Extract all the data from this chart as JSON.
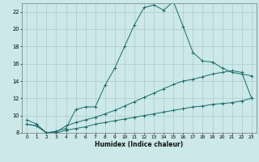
{
  "xlabel": "Humidex (Indice chaleur)",
  "bg_color": "#cce8e8",
  "grid_color": "#aacccc",
  "line_color": "#1a6b6b",
  "xlim": [
    -0.5,
    23.5
  ],
  "ylim": [
    8,
    23
  ],
  "xticks": [
    0,
    1,
    2,
    3,
    4,
    5,
    6,
    7,
    8,
    9,
    10,
    11,
    12,
    13,
    14,
    15,
    16,
    17,
    18,
    19,
    20,
    21,
    22,
    23
  ],
  "yticks": [
    8,
    10,
    12,
    14,
    16,
    18,
    20,
    22
  ],
  "line1_x": [
    0,
    1,
    2,
    3,
    4,
    5,
    6,
    7,
    8,
    9,
    10,
    11,
    12,
    13,
    14,
    15,
    16,
    17,
    18,
    19,
    20,
    21,
    22,
    23
  ],
  "line1_y": [
    9.5,
    9.0,
    8.0,
    8.2,
    8.5,
    10.7,
    11.0,
    11.0,
    13.5,
    15.5,
    18.0,
    20.5,
    22.5,
    22.8,
    22.2,
    23.2,
    20.3,
    17.3,
    16.3,
    16.2,
    15.5,
    15.0,
    14.8,
    14.6
  ],
  "line2_x": [
    0,
    1,
    2,
    3,
    4,
    5,
    6,
    7,
    8,
    9,
    10,
    11,
    12,
    13,
    14,
    15,
    16,
    17,
    18,
    19,
    20,
    21,
    22,
    23
  ],
  "line2_y": [
    9.0,
    8.8,
    8.0,
    8.1,
    8.8,
    9.2,
    9.5,
    9.8,
    10.2,
    10.6,
    11.1,
    11.6,
    12.1,
    12.6,
    13.1,
    13.6,
    14.0,
    14.2,
    14.5,
    14.8,
    15.0,
    15.2,
    15.0,
    12.0
  ],
  "line3_x": [
    0,
    1,
    2,
    3,
    4,
    5,
    6,
    7,
    8,
    9,
    10,
    11,
    12,
    13,
    14,
    15,
    16,
    17,
    18,
    19,
    20,
    21,
    22,
    23
  ],
  "line3_y": [
    9.0,
    8.8,
    8.0,
    8.0,
    8.3,
    8.5,
    8.7,
    9.0,
    9.2,
    9.4,
    9.6,
    9.8,
    10.0,
    10.2,
    10.4,
    10.6,
    10.8,
    11.0,
    11.1,
    11.3,
    11.4,
    11.5,
    11.7,
    12.0
  ]
}
